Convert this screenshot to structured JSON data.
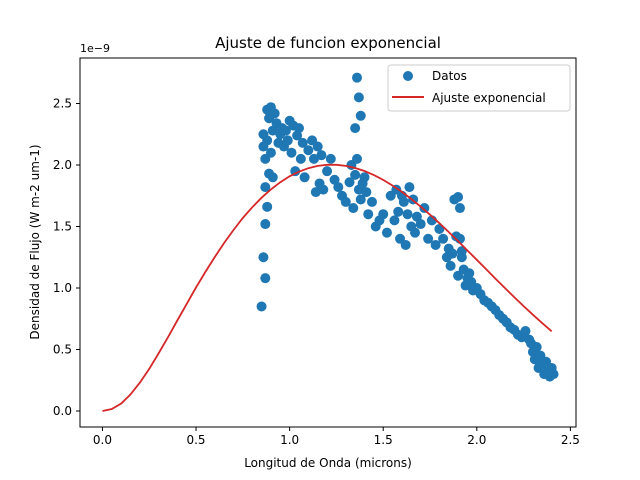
{
  "chart_data": {
    "type": "scatter",
    "title": "Ajuste de funcion exponencial",
    "xlabel": "Longitud de Onda (microns)",
    "ylabel": "Densidad de Flujo (W m-2 um-1)",
    "y_offset_label": "1e−9",
    "xlim": [
      -0.12,
      2.53
    ],
    "ylim": [
      -0.13,
      2.87
    ],
    "x_ticks": [
      {
        "value": 0.0,
        "label": "0.0"
      },
      {
        "value": 0.5,
        "label": "0.5"
      },
      {
        "value": 1.0,
        "label": "1.0"
      },
      {
        "value": 1.5,
        "label": "1.5"
      },
      {
        "value": 2.0,
        "label": "2.0"
      },
      {
        "value": 2.5,
        "label": "2.5"
      }
    ],
    "y_ticks": [
      {
        "value": 0.0,
        "label": "0.0"
      },
      {
        "value": 0.5,
        "label": "0.5"
      },
      {
        "value": 1.0,
        "label": "1.0"
      },
      {
        "value": 1.5,
        "label": "1.5"
      },
      {
        "value": 2.0,
        "label": "2.0"
      },
      {
        "value": 2.5,
        "label": "2.5"
      }
    ],
    "grid": false,
    "legend": {
      "placement": "top-right"
    },
    "series": [
      {
        "name": "Datos",
        "kind": "scatter",
        "color": "#1f77b4",
        "x": [
          0.85,
          0.86,
          0.86,
          0.86,
          0.87,
          0.87,
          0.87,
          0.87,
          0.88,
          0.88,
          0.88,
          0.89,
          0.89,
          0.9,
          0.9,
          0.91,
          0.91,
          0.92,
          0.93,
          0.94,
          0.95,
          0.96,
          0.97,
          0.98,
          0.99,
          1.0,
          1.01,
          1.02,
          1.03,
          1.04,
          1.05,
          1.06,
          1.07,
          1.08,
          1.1,
          1.12,
          1.13,
          1.14,
          1.15,
          1.16,
          1.17,
          1.18,
          1.2,
          1.22,
          1.24,
          1.26,
          1.28,
          1.3,
          1.32,
          1.33,
          1.34,
          1.35,
          1.35,
          1.36,
          1.36,
          1.37,
          1.37,
          1.38,
          1.38,
          1.39,
          1.4,
          1.41,
          1.42,
          1.44,
          1.46,
          1.48,
          1.5,
          1.52,
          1.54,
          1.56,
          1.57,
          1.58,
          1.59,
          1.6,
          1.61,
          1.62,
          1.63,
          1.64,
          1.65,
          1.66,
          1.67,
          1.68,
          1.7,
          1.72,
          1.74,
          1.76,
          1.78,
          1.8,
          1.82,
          1.84,
          1.85,
          1.86,
          1.87,
          1.88,
          1.89,
          1.9,
          1.9,
          1.91,
          1.91,
          1.92,
          1.92,
          1.93,
          1.94,
          1.95,
          1.96,
          1.97,
          1.98,
          2.0,
          2.02,
          2.04,
          2.06,
          2.08,
          2.1,
          2.12,
          2.14,
          2.16,
          2.18,
          2.2,
          2.22,
          2.24,
          2.26,
          2.28,
          2.29,
          2.3,
          2.31,
          2.32,
          2.33,
          2.34,
          2.35,
          2.36,
          2.37,
          2.38,
          2.39,
          2.4,
          2.41
        ],
        "y": [
          0.85,
          2.15,
          1.25,
          2.25,
          1.08,
          1.52,
          2.05,
          1.82,
          2.45,
          1.66,
          2.2,
          1.93,
          2.38,
          2.47,
          2.1,
          2.28,
          1.9,
          2.42,
          2.34,
          2.18,
          2.25,
          2.3,
          2.15,
          2.28,
          2.2,
          2.36,
          2.1,
          2.32,
          1.95,
          2.24,
          2.3,
          2.05,
          2.18,
          1.9,
          2.12,
          2.2,
          2.05,
          1.78,
          2.15,
          1.85,
          2.08,
          1.8,
          1.95,
          2.05,
          1.88,
          1.82,
          1.75,
          1.7,
          1.86,
          2.0,
          1.65,
          2.3,
          1.92,
          2.71,
          2.05,
          2.55,
          1.8,
          2.4,
          1.72,
          1.85,
          1.9,
          1.78,
          1.6,
          1.7,
          1.5,
          1.55,
          1.6,
          1.45,
          1.75,
          1.55,
          1.8,
          1.62,
          1.4,
          1.75,
          1.7,
          1.35,
          1.6,
          1.82,
          1.5,
          1.72,
          1.45,
          1.58,
          1.52,
          1.65,
          1.4,
          1.55,
          1.35,
          1.48,
          1.4,
          1.25,
          1.32,
          1.18,
          1.28,
          1.72,
          1.42,
          1.74,
          1.1,
          1.65,
          1.4,
          1.3,
          1.25,
          1.15,
          1.02,
          1.08,
          1.12,
          1.05,
          0.98,
          1.0,
          0.95,
          0.9,
          0.88,
          0.85,
          0.82,
          0.78,
          0.75,
          0.72,
          0.68,
          0.66,
          0.62,
          0.6,
          0.65,
          0.58,
          0.55,
          0.48,
          0.42,
          0.52,
          0.35,
          0.45,
          0.38,
          0.3,
          0.4,
          0.32,
          0.28,
          0.35,
          0.3
        ]
      },
      {
        "name": "Ajuste exponencial",
        "kind": "line",
        "color": "#d62728",
        "x": [
          0.0,
          0.05,
          0.1,
          0.15,
          0.2,
          0.25,
          0.3,
          0.35,
          0.4,
          0.45,
          0.5,
          0.55,
          0.6,
          0.65,
          0.7,
          0.75,
          0.8,
          0.85,
          0.9,
          0.95,
          1.0,
          1.05,
          1.1,
          1.15,
          1.2,
          1.25,
          1.3,
          1.35,
          1.4,
          1.45,
          1.5,
          1.55,
          1.6,
          1.65,
          1.7,
          1.75,
          1.8,
          1.85,
          1.9,
          1.95,
          2.0,
          2.05,
          2.1,
          2.15,
          2.2,
          2.25,
          2.3,
          2.35,
          2.4
        ],
        "y": [
          0.0,
          0.016,
          0.061,
          0.135,
          0.231,
          0.343,
          0.468,
          0.6,
          0.736,
          0.871,
          1.004,
          1.131,
          1.252,
          1.366,
          1.472,
          1.569,
          1.656,
          1.734,
          1.802,
          1.86,
          1.908,
          1.946,
          1.974,
          1.993,
          2.002,
          2.002,
          1.993,
          1.976,
          1.951,
          1.918,
          1.879,
          1.833,
          1.781,
          1.724,
          1.662,
          1.596,
          1.527,
          1.455,
          1.381,
          1.305,
          1.229,
          1.152,
          1.076,
          1.0,
          0.926,
          0.853,
          0.782,
          0.714,
          0.648
        ]
      }
    ]
  }
}
